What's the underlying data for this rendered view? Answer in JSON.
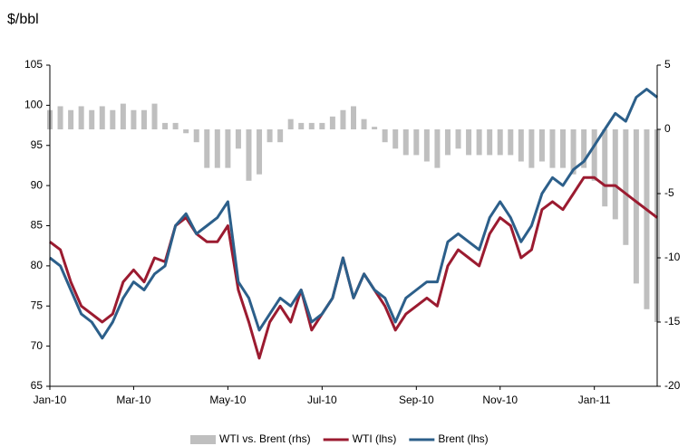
{
  "chart_data": {
    "type": "line",
    "ylabel": "$/bbl",
    "categories": [
      "Jan-10",
      null,
      null,
      null,
      null,
      null,
      null,
      null,
      "Mar-10",
      null,
      null,
      null,
      null,
      null,
      null,
      null,
      null,
      "May-10",
      null,
      null,
      null,
      null,
      null,
      null,
      null,
      null,
      "Jul-10",
      null,
      null,
      null,
      null,
      null,
      null,
      null,
      null,
      "Sep-10",
      null,
      null,
      null,
      null,
      null,
      null,
      null,
      "Nov-10",
      null,
      null,
      null,
      null,
      null,
      null,
      null,
      null,
      "Jan-11",
      null,
      null,
      null,
      null,
      null,
      null
    ],
    "series": [
      {
        "name": "WTI vs. Brent (rhs)",
        "type": "bar",
        "axis": "y2",
        "color": "#bfbfbf",
        "values": [
          1.5,
          1.8,
          1.5,
          1.8,
          1.5,
          1.8,
          1.5,
          2,
          1.5,
          1.5,
          2,
          0.5,
          0.5,
          -0.3,
          -1,
          -3,
          -3,
          -3,
          -1.5,
          -4,
          -3.5,
          -1,
          -1,
          0.8,
          0.5,
          0.5,
          0.5,
          1,
          1.5,
          1.8,
          0.8,
          0.2,
          -1,
          -1.5,
          -2,
          -2,
          -2.5,
          -3,
          -2,
          -1.5,
          -2,
          -2,
          -2,
          -2,
          -2,
          -2.5,
          -3,
          -2.5,
          -3,
          -3,
          -3.5,
          -3,
          -4,
          -6,
          -7,
          -9,
          -12,
          -14,
          -15
        ]
      },
      {
        "name": "WTI (lhs)",
        "type": "line",
        "color": "#9b1b30",
        "values": [
          83,
          82,
          78,
          75,
          74,
          73,
          74,
          78,
          79.5,
          78,
          81,
          80.5,
          85,
          86,
          84,
          83,
          83,
          85,
          77,
          73,
          68.5,
          73,
          75,
          73,
          77,
          72,
          74,
          76,
          81,
          76,
          79,
          77,
          75,
          72,
          74,
          75,
          76,
          75,
          80,
          82,
          81,
          80,
          84,
          86,
          85,
          81,
          82,
          87,
          88,
          87,
          89,
          91,
          91,
          90,
          90,
          89,
          88,
          87,
          86
        ]
      },
      {
        "name": "Brent (lhs)",
        "type": "line",
        "color": "#2c5f8a",
        "values": [
          81,
          80,
          77,
          74,
          73,
          71,
          73,
          76,
          78,
          77,
          79,
          80,
          85,
          86.5,
          84,
          85,
          86,
          88,
          78,
          76,
          72,
          74,
          76,
          75,
          77,
          73,
          74,
          76,
          81,
          76,
          79,
          77,
          76,
          73,
          76,
          77,
          78,
          78,
          83,
          84,
          83,
          82,
          86,
          88,
          86,
          83,
          85,
          89,
          91,
          90,
          92,
          93,
          95,
          97,
          99,
          98,
          101,
          102,
          101
        ]
      }
    ],
    "ylim": [
      65,
      105
    ],
    "yticks": [
      65,
      70,
      75,
      80,
      85,
      90,
      95,
      100,
      105
    ],
    "y2lim": [
      -20,
      5
    ],
    "y2ticks": [
      -20,
      -15,
      -10,
      -5,
      0,
      5
    ]
  }
}
